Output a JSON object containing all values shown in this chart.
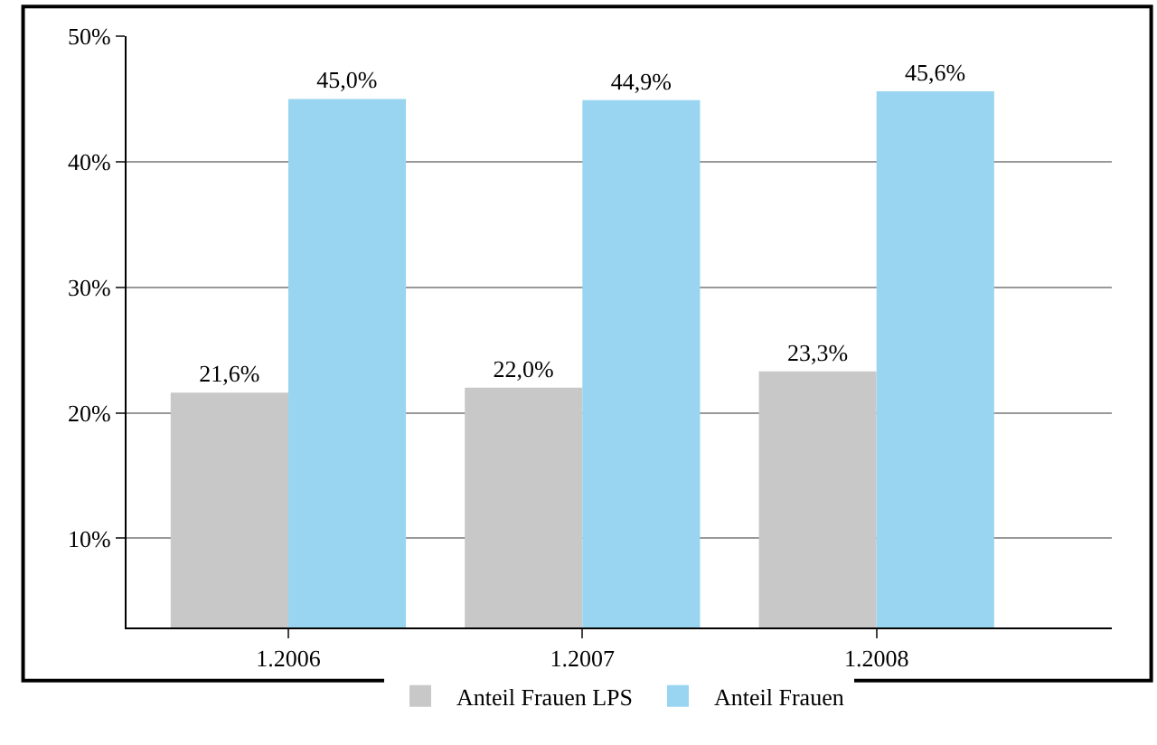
{
  "chart_data": {
    "type": "bar",
    "categories": [
      "1.2006",
      "1.2007",
      "1.2008"
    ],
    "series": [
      {
        "name": "Anteil Frauen LPS",
        "color": "#c8c8c8",
        "values": [
          21.6,
          22.0,
          23.3
        ],
        "value_labels": [
          "21,6%",
          "22,0%",
          "23,3%"
        ]
      },
      {
        "name": "Anteil Frauen",
        "color": "#99d5f0",
        "values": [
          45.0,
          44.9,
          45.6
        ],
        "value_labels": [
          "45,0%",
          "44,9%",
          "45,6%"
        ]
      }
    ],
    "ylim": [
      2.9,
      50
    ],
    "yticks": [
      {
        "value": 10,
        "label": "10%"
      },
      {
        "value": 20,
        "label": "20%"
      },
      {
        "value": 30,
        "label": "30%"
      },
      {
        "value": 40,
        "label": "40%"
      },
      {
        "value": 50,
        "label": "50%"
      }
    ],
    "grid": "y",
    "legend": "bottom"
  }
}
